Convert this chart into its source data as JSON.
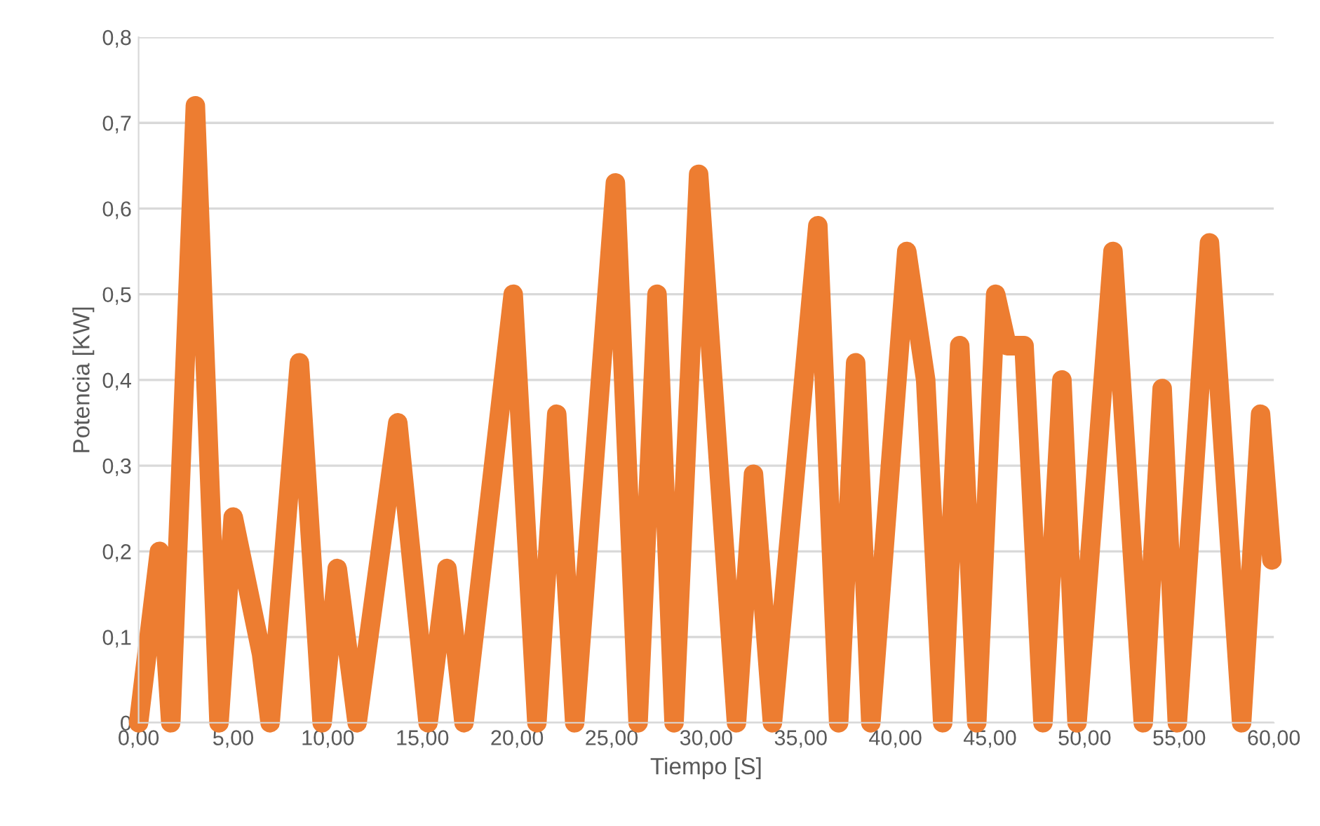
{
  "chart_data": {
    "type": "line",
    "xlabel": "Tiempo [S]",
    "ylabel": "Potencia [KW]",
    "series": [
      {
        "color": "#ed7d31",
        "x": [
          0,
          1.1,
          1.7,
          3.0,
          4.25,
          5.0,
          6.5,
          6.95,
          8.5,
          9.7,
          10.5,
          11.55,
          13.7,
          15.3,
          16.3,
          17.2,
          19.8,
          21.05,
          22.1,
          23.05,
          25.2,
          26.4,
          27.4,
          28.3,
          29.6,
          31.6,
          32.5,
          33.5,
          35.9,
          37.0,
          37.9,
          38.7,
          40.6,
          41.6,
          42.5,
          43.4,
          44.3,
          45.3,
          45.9,
          46.8,
          47.8,
          48.8,
          49.6,
          51.5,
          53.1,
          54.1,
          54.9,
          56.6,
          58.3,
          59.3,
          59.9
        ],
        "values": [
          0,
          0.2,
          0,
          0.72,
          0,
          0.24,
          0.08,
          0,
          0.42,
          0,
          0.18,
          0,
          0.35,
          0,
          0.18,
          0,
          0.5,
          0,
          0.36,
          0,
          0.63,
          0,
          0.5,
          0,
          0.64,
          0,
          0.29,
          0,
          0.58,
          0,
          0.42,
          0,
          0.55,
          0.4,
          0,
          0.44,
          0,
          0.5,
          0.44,
          0.44,
          0,
          0.4,
          0,
          0.55,
          0,
          0.39,
          0,
          0.56,
          0,
          0.36,
          0.19
        ]
      }
    ],
    "xlim": [
      0,
      60
    ],
    "ylim": [
      0,
      0.8
    ],
    "xticks": [
      {
        "value": 0,
        "label": "0,00"
      },
      {
        "value": 5,
        "label": "5,00"
      },
      {
        "value": 10,
        "label": "10,00"
      },
      {
        "value": 15,
        "label": "15,00"
      },
      {
        "value": 20,
        "label": "20,00"
      },
      {
        "value": 25,
        "label": "25,00"
      },
      {
        "value": 30,
        "label": "30,00"
      },
      {
        "value": 35,
        "label": "35,00"
      },
      {
        "value": 40,
        "label": "40,00"
      },
      {
        "value": 45,
        "label": "45,00"
      },
      {
        "value": 50,
        "label": "50,00"
      },
      {
        "value": 55,
        "label": "55,00"
      },
      {
        "value": 60,
        "label": "60,00"
      }
    ],
    "yticks": [
      0,
      {
        "value": 0.1,
        "label": "0,1"
      },
      {
        "value": 0.2,
        "label": "0,2"
      },
      {
        "value": 0.3,
        "label": "0,3"
      },
      {
        "value": 0.4,
        "label": "0,4"
      },
      {
        "value": 0.5,
        "label": "0,5"
      },
      {
        "value": 0.6,
        "label": "0,6"
      },
      {
        "value": 0.7,
        "label": "0,7"
      },
      {
        "value": 0.8,
        "label": "0,8"
      }
    ],
    "grid": "y",
    "marker": "none",
    "line_style": "solid"
  }
}
